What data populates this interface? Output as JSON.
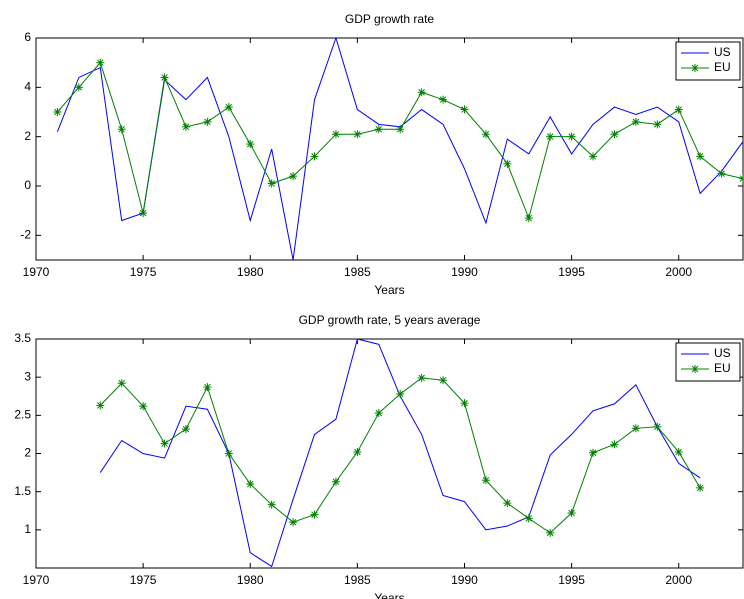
{
  "chart_data": [
    {
      "type": "line",
      "title": "GDP growth rate",
      "xlabel": "Years",
      "x": [
        1971,
        1972,
        1973,
        1974,
        1975,
        1976,
        1977,
        1978,
        1979,
        1980,
        1981,
        1982,
        1983,
        1984,
        1985,
        1986,
        1987,
        1988,
        1989,
        1990,
        1991,
        1992,
        1993,
        1994,
        1995,
        1996,
        1997,
        1998,
        1999,
        2000,
        2001,
        2002,
        2003
      ],
      "series": [
        {
          "name": "US",
          "color": "#0000ff",
          "marker": "none",
          "values": [
            2.2,
            4.4,
            4.8,
            -1.4,
            -1.1,
            4.3,
            3.5,
            4.4,
            2.0,
            -1.4,
            1.5,
            -3.0,
            3.5,
            6.0,
            3.1,
            2.5,
            2.4,
            3.1,
            2.5,
            0.7,
            -1.5,
            1.9,
            1.3,
            2.8,
            1.3,
            2.5,
            3.2,
            2.9,
            3.2,
            2.6,
            -0.3,
            0.6,
            1.8
          ]
        },
        {
          "name": "EU",
          "color": "#008000",
          "marker": "*",
          "values": [
            3.0,
            4.0,
            5.0,
            2.3,
            -1.1,
            4.4,
            2.4,
            2.6,
            3.2,
            1.7,
            0.1,
            0.4,
            1.2,
            2.1,
            2.1,
            2.3,
            2.3,
            3.8,
            3.5,
            3.1,
            2.1,
            0.9,
            -1.3,
            2.0,
            2.0,
            1.2,
            2.1,
            2.6,
            2.5,
            3.1,
            1.2,
            0.5,
            0.3
          ]
        }
      ],
      "xlim": [
        1970,
        2003
      ],
      "xticks": [
        1970,
        1975,
        1980,
        1985,
        1990,
        1995,
        2000
      ],
      "ylim": [
        -3,
        6
      ],
      "yticks": [
        -2,
        0,
        2,
        4,
        6
      ],
      "legend": "upper right"
    },
    {
      "type": "line",
      "title": "GDP growth rate, 5 years average",
      "xlabel": "Years",
      "x": [
        1973,
        1974,
        1975,
        1976,
        1977,
        1978,
        1979,
        1980,
        1981,
        1982,
        1983,
        1984,
        1985,
        1986,
        1987,
        1988,
        1989,
        1990,
        1991,
        1992,
        1993,
        1994,
        1995,
        1996,
        1997,
        1998,
        1999,
        2000,
        2001
      ],
      "series": [
        {
          "name": "US",
          "color": "#0000ff",
          "marker": "none",
          "values": [
            1.75,
            2.17,
            2.0,
            1.94,
            2.62,
            2.58,
            2.0,
            0.7,
            0.52,
            1.4,
            2.25,
            2.45,
            3.5,
            3.43,
            2.75,
            2.25,
            1.45,
            1.37,
            1.0,
            1.05,
            1.17,
            1.98,
            2.25,
            2.56,
            2.65,
            2.9,
            2.35,
            1.87,
            1.68
          ]
        },
        {
          "name": "EU",
          "color": "#008000",
          "marker": "*",
          "values": [
            2.63,
            2.92,
            2.62,
            2.13,
            2.32,
            2.87,
            2.0,
            1.6,
            1.33,
            1.1,
            1.2,
            1.63,
            2.02,
            2.53,
            2.78,
            2.99,
            2.96,
            2.66,
            1.65,
            1.35,
            1.15,
            0.96,
            1.22,
            2.01,
            2.12,
            2.33,
            2.35,
            2.02,
            1.55
          ]
        }
      ],
      "xlim": [
        1970,
        2003
      ],
      "xticks": [
        1970,
        1975,
        1980,
        1985,
        1990,
        1995,
        2000
      ],
      "ylim": [
        0.5,
        3.5
      ],
      "yticks": [
        1,
        1.5,
        2,
        2.5,
        3,
        3.5
      ],
      "legend": "upper right"
    }
  ]
}
